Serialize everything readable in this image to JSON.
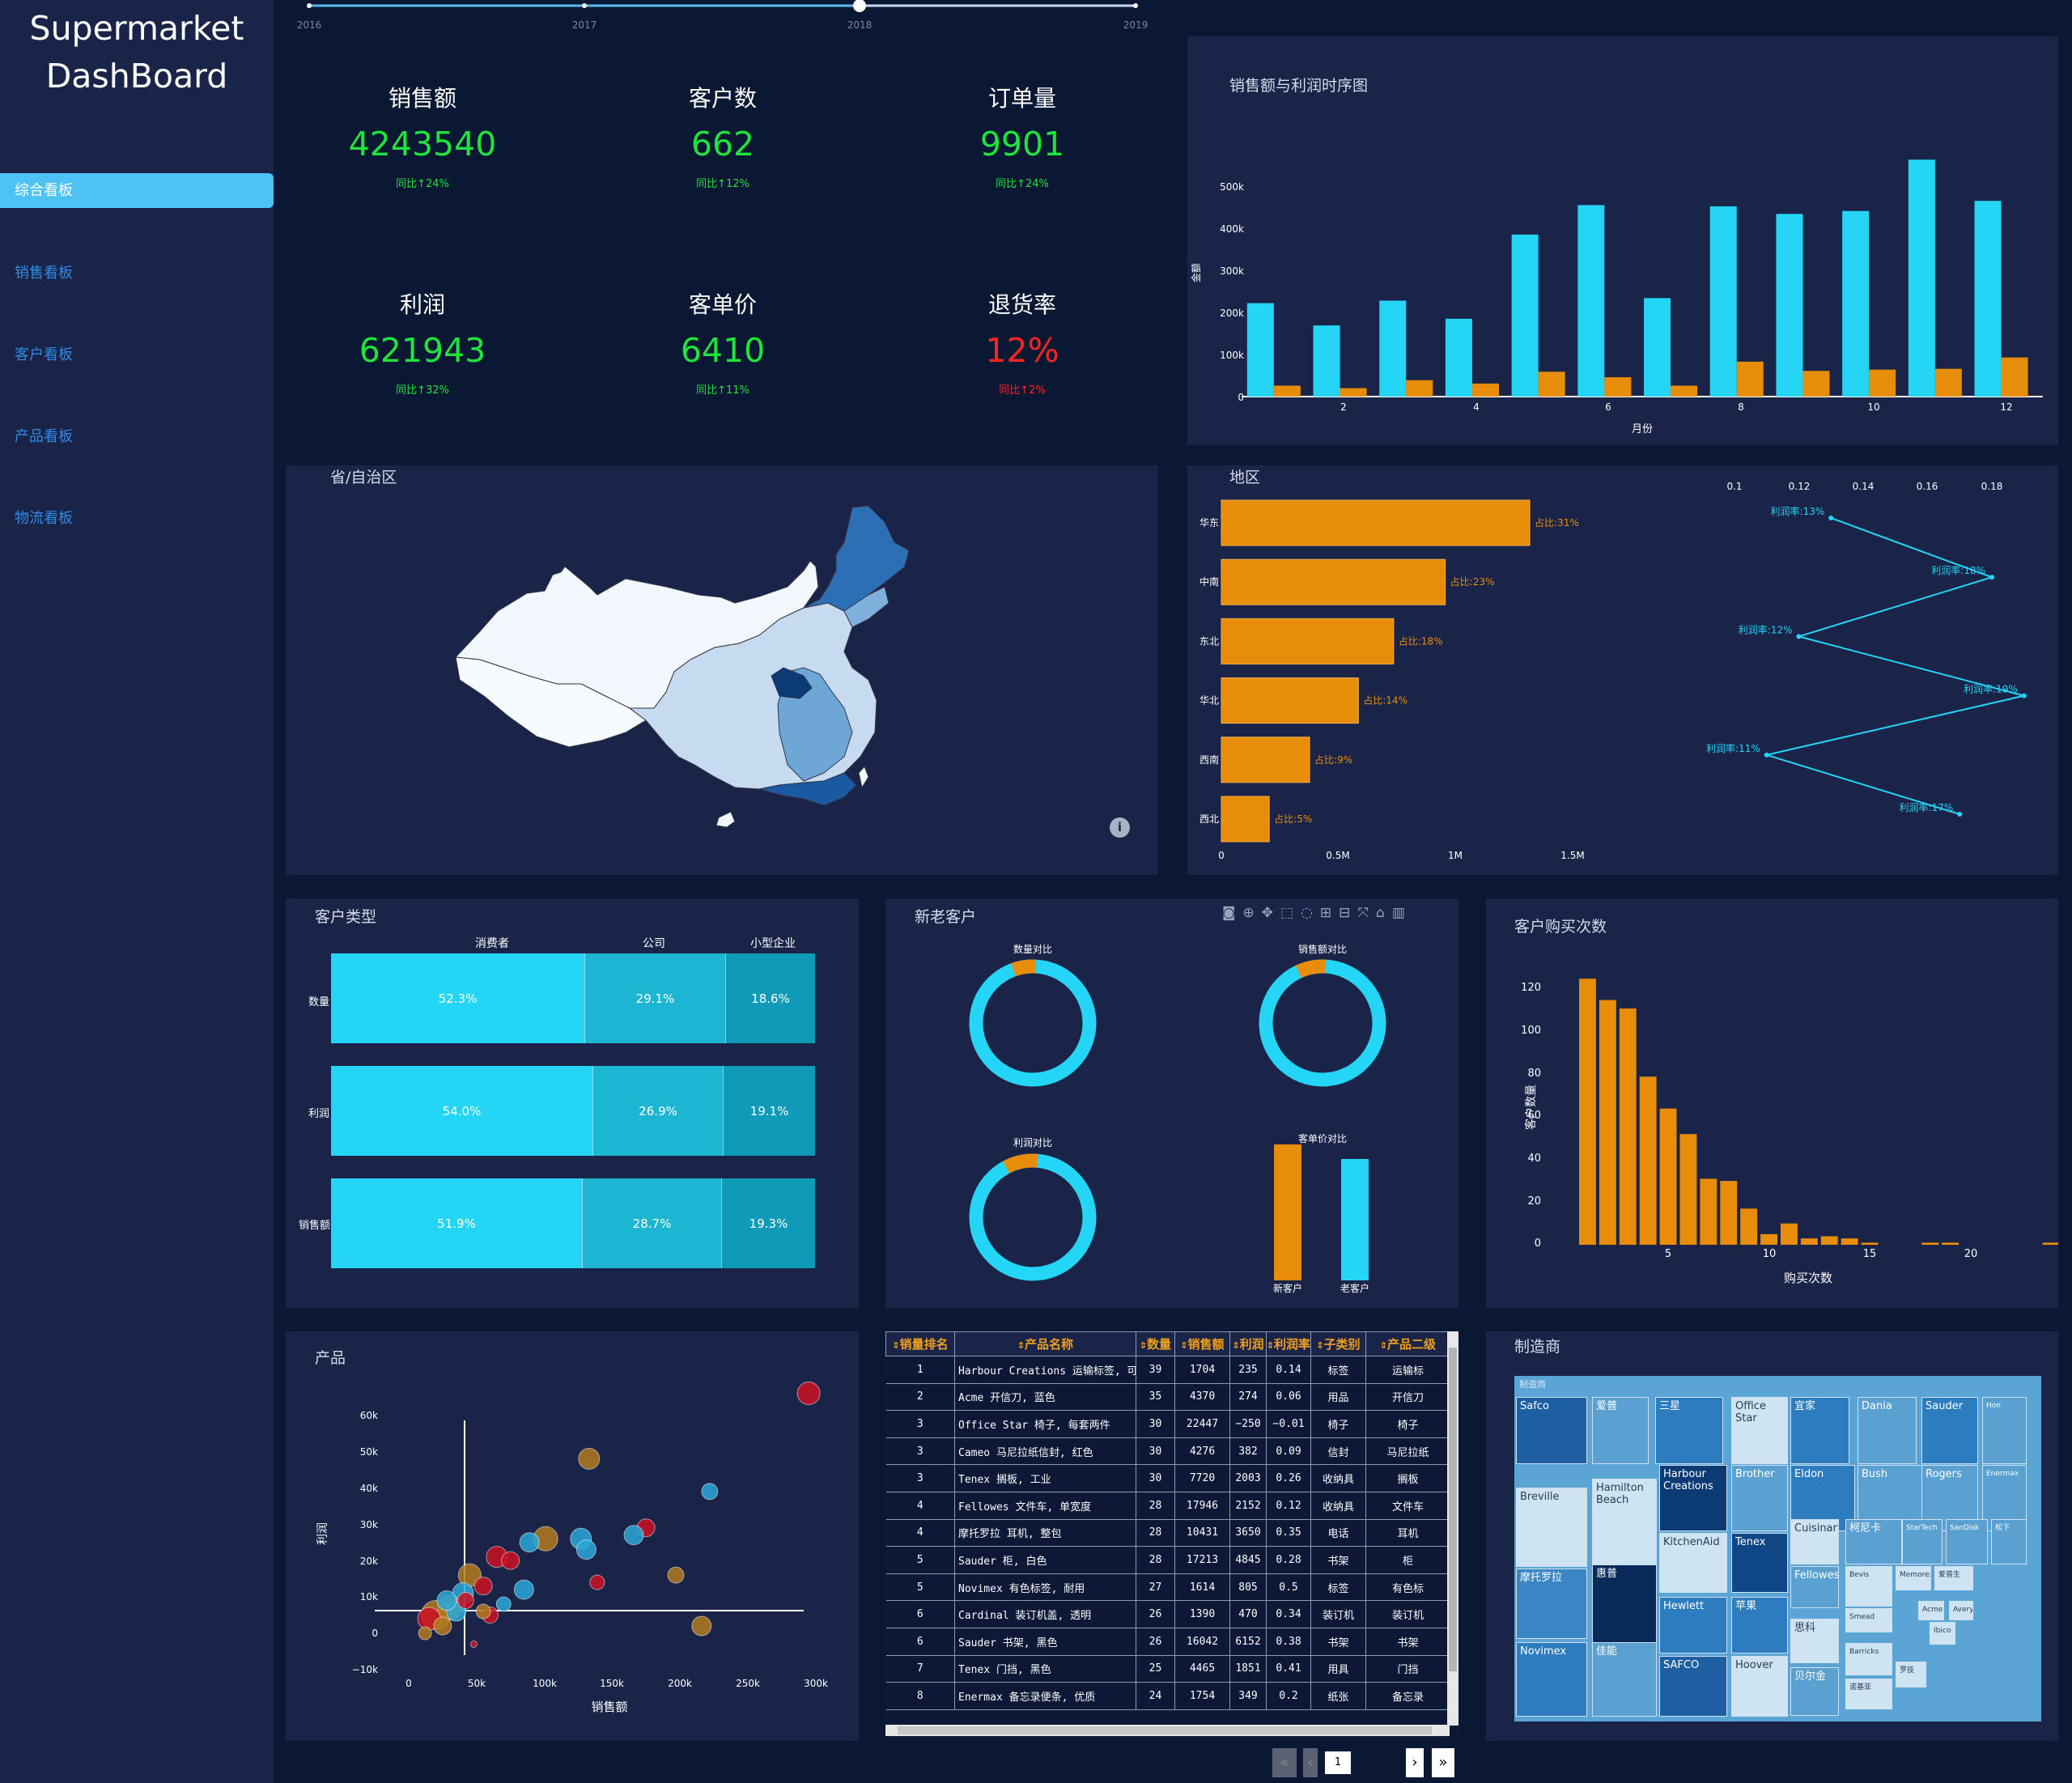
{
  "sidebar": {
    "title_line1": "Supermarket",
    "title_line2": "DashBoard",
    "items": [
      {
        "label": "综合看板"
      },
      {
        "label": "销售看板"
      },
      {
        "label": "客户看板"
      },
      {
        "label": "产品看板"
      },
      {
        "label": "物流看板"
      }
    ]
  },
  "timeline": {
    "years": [
      "2016",
      "2017",
      "2018",
      "2019"
    ],
    "selected": "2018"
  },
  "kpis": [
    {
      "title": "销售额",
      "value": "4243540",
      "yoy": "同比↑24%"
    },
    {
      "title": "客户数",
      "value": "662",
      "yoy": "同比↑12%"
    },
    {
      "title": "订单量",
      "value": "9901",
      "yoy": "同比↑24%"
    },
    {
      "title": "利润",
      "value": "621943",
      "yoy": "同比↑32%"
    },
    {
      "title": "客单价",
      "value": "6410",
      "yoy": "同比↑11%"
    },
    {
      "title": "退货率",
      "value": "12%",
      "yoy": "同比↑2%"
    }
  ],
  "colors": {
    "cyan": "#24d5f5",
    "orange": "#e88d09",
    "green": "#1ee43c",
    "red": "#ff2323",
    "panel": "#1a2449",
    "bg": "#0b1833"
  },
  "monthly": {
    "title": "销售额与利润时序图",
    "xlabel": "月份",
    "ylabel": "金额",
    "ytick": [
      "0",
      "100k",
      "200k",
      "300k",
      "400k",
      "500k"
    ],
    "xtick": [
      "2",
      "4",
      "6",
      "8",
      "10",
      "12"
    ]
  },
  "map": {
    "title": "省/自治区"
  },
  "region": {
    "title": "地区",
    "xtick": [
      "0",
      "0.5M",
      "1M",
      "1.5M"
    ],
    "toptick": [
      "0.1",
      "0.12",
      "0.14",
      "0.16",
      "0.18"
    ]
  },
  "customer_type": {
    "title": "客户类型",
    "cols": [
      "消费者",
      "公司",
      "小型企业"
    ],
    "rows": [
      {
        "label": "数量",
        "vals": [
          "52.3%",
          "29.1%",
          "18.6%"
        ]
      },
      {
        "label": "利润",
        "vals": [
          "54.0%",
          "26.9%",
          "19.1%"
        ]
      },
      {
        "label": "销售额",
        "vals": [
          "51.9%",
          "28.7%",
          "19.3%"
        ]
      }
    ]
  },
  "new_old": {
    "title": "新老客户",
    "labels": [
      "数量对比",
      "销售额对比",
      "利润对比",
      "客单价对比"
    ],
    "bar_labels": [
      "新客户",
      "老客户"
    ]
  },
  "buy_times": {
    "title": "客户购买次数",
    "xlabel": "购买次数",
    "ylabel": "客户数量",
    "ytick": [
      "0",
      "20",
      "40",
      "60",
      "80",
      "100",
      "120"
    ],
    "xtick": [
      "5",
      "10",
      "15",
      "20"
    ]
  },
  "product": {
    "title": "产品",
    "xlabel": "销售额",
    "ylabel": "利润",
    "xtick": [
      "0",
      "50k",
      "100k",
      "150k",
      "200k",
      "250k",
      "300k"
    ],
    "ytick": [
      "−10k",
      "0",
      "10k",
      "20k",
      "30k",
      "40k",
      "50k",
      "60k"
    ]
  },
  "table": {
    "headers": [
      "销量排名",
      "产品名称",
      "数量",
      "销售额",
      "利润",
      "利润率",
      "子类别",
      "产品二级"
    ],
    "rows": [
      [
        "1",
        "Harbour Creations 运输标签, 可调",
        "39",
        "1704",
        "235",
        "0.14",
        "标签",
        "运输标"
      ],
      [
        "2",
        "Acme 开信刀, 蓝色",
        "35",
        "4370",
        "274",
        "0.06",
        "用品",
        "开信刀"
      ],
      [
        "3",
        "Office Star 椅子, 每套两件",
        "30",
        "22447",
        "−250",
        "−0.01",
        "椅子",
        "椅子"
      ],
      [
        "3",
        "Cameo 马尼拉纸信封, 红色",
        "30",
        "4276",
        "382",
        "0.09",
        "信封",
        "马尼拉纸"
      ],
      [
        "3",
        "Tenex 搁板, 工业",
        "30",
        "7720",
        "2003",
        "0.26",
        "收纳具",
        "搁板"
      ],
      [
        "4",
        "Fellowes 文件车, 单宽度",
        "28",
        "17946",
        "2152",
        "0.12",
        "收纳具",
        "文件车"
      ],
      [
        "4",
        "摩托罗拉 耳机, 整包",
        "28",
        "10431",
        "3650",
        "0.35",
        "电话",
        "耳机"
      ],
      [
        "5",
        "Sauder 柜, 白色",
        "28",
        "17213",
        "4845",
        "0.28",
        "书架",
        "柜"
      ],
      [
        "5",
        "Novimex 有色标签, 耐用",
        "27",
        "1614",
        "805",
        "0.5",
        "标签",
        "有色标"
      ],
      [
        "6",
        "Cardinal 装订机盖, 透明",
        "26",
        "1390",
        "470",
        "0.34",
        "装订机",
        "装订机"
      ],
      [
        "6",
        "Sauder 书架, 黑色",
        "26",
        "16042",
        "6152",
        "0.38",
        "书架",
        "书架"
      ],
      [
        "7",
        "Tenex 门挡, 黑色",
        "25",
        "4465",
        "1851",
        "0.41",
        "用具",
        "门挡"
      ],
      [
        "8",
        "Enermax 备忘录便条, 优质",
        "24",
        "1754",
        "349",
        "0.2",
        "纸张",
        "备忘录"
      ]
    ],
    "page": "1"
  },
  "treemap": {
    "title": "制造商",
    "root": "制造商",
    "items": [
      "Safco",
      "爱普",
      "三星",
      "Office Star",
      "宜家",
      "Dania",
      "Sauder",
      "Hon",
      "Harbour Creations",
      "Brother",
      "Eldon",
      "Bush",
      "Rogers",
      "Enermax",
      "Breville",
      "Hamilton Beach",
      "KitchenAid",
      "Tenex",
      "Cuisinart",
      "柯尼卡",
      "StarTech",
      "SanDisk",
      "松下",
      "摩托罗拉",
      "惠普",
      "Fellowes",
      "Bevis",
      "Memorex",
      "爱普生",
      "Hewlett",
      "苹果",
      "Smead",
      "Acme",
      "Avery",
      "思科",
      "Novimex",
      "佳能",
      "SAFCO",
      "Hoover",
      "贝尔金",
      "Barricks",
      "诺基亚",
      "罗技",
      "Ibico"
    ]
  }
}
